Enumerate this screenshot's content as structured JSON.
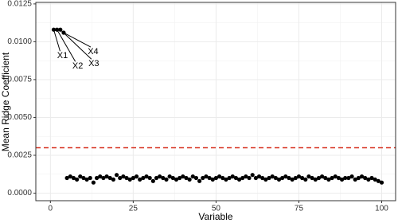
{
  "chart_data": {
    "type": "scatter",
    "x_label": "Variable",
    "y_label": "Mean Ridge Coefficient",
    "xlim": [
      -4.4,
      104.2
    ],
    "ylim": [
      -0.0005,
      0.0126
    ],
    "xticks": [
      0,
      25,
      50,
      75,
      100
    ],
    "yticks": [
      {
        "value": 0,
        "label": "0.0000"
      },
      {
        "value": 0.0025,
        "label": "0.0025"
      },
      {
        "value": 0.005,
        "label": "0.0050"
      },
      {
        "value": 0.0075,
        "label": "0.0075"
      },
      {
        "value": 0.01,
        "label": "0.0100"
      },
      {
        "value": 0.0125,
        "label": "0.0125"
      }
    ],
    "grid": true,
    "color": "#000000",
    "threshold": 0.003,
    "threshold_color": "#d7301f",
    "annotations": [
      "X1",
      "X2",
      "X3",
      "X4"
    ],
    "x": [
      1,
      2,
      3,
      4,
      5,
      6,
      7,
      8,
      9,
      10,
      11,
      12,
      13,
      14,
      15,
      16,
      17,
      18,
      19,
      20,
      21,
      22,
      23,
      24,
      25,
      26,
      27,
      28,
      29,
      30,
      31,
      32,
      33,
      34,
      35,
      36,
      37,
      38,
      39,
      40,
      41,
      42,
      43,
      44,
      45,
      46,
      47,
      48,
      49,
      50,
      51,
      52,
      53,
      54,
      55,
      56,
      57,
      58,
      59,
      60,
      61,
      62,
      63,
      64,
      65,
      66,
      67,
      68,
      69,
      70,
      71,
      72,
      73,
      74,
      75,
      76,
      77,
      78,
      79,
      80,
      81,
      82,
      83,
      84,
      85,
      86,
      87,
      88,
      89,
      90,
      91,
      92,
      93,
      94,
      95,
      96,
      97,
      98,
      99,
      100
    ],
    "values": [
      0.0108,
      0.0108,
      0.0108,
      0.0106,
      0.001,
      0.0011,
      0.001,
      0.0009,
      0.0011,
      0.001,
      0.0009,
      0.001,
      0.0007,
      0.001,
      0.0011,
      0.001,
      0.0011,
      0.001,
      0.0009,
      0.0012,
      0.001,
      0.0011,
      0.001,
      0.0009,
      0.001,
      0.0011,
      0.0009,
      0.001,
      0.0011,
      0.001,
      0.0008,
      0.001,
      0.0011,
      0.001,
      0.0009,
      0.0011,
      0.001,
      0.0009,
      0.001,
      0.0011,
      0.001,
      0.0009,
      0.0011,
      0.001,
      0.0008,
      0.001,
      0.0011,
      0.001,
      0.0009,
      0.001,
      0.0011,
      0.001,
      0.0009,
      0.001,
      0.0011,
      0.001,
      0.0009,
      0.001,
      0.0011,
      0.001,
      0.0012,
      0.001,
      0.0011,
      0.001,
      0.0009,
      0.001,
      0.0011,
      0.001,
      0.0009,
      0.001,
      0.0011,
      0.001,
      0.0009,
      0.001,
      0.0011,
      0.001,
      0.0009,
      0.0011,
      0.001,
      0.0009,
      0.001,
      0.0011,
      0.001,
      0.0009,
      0.001,
      0.0011,
      0.001,
      0.0009,
      0.001,
      0.001,
      0.0011,
      0.0009,
      0.001,
      0.0011,
      0.001,
      0.0009,
      0.001,
      0.0009,
      0.0008,
      0.0007
    ]
  }
}
